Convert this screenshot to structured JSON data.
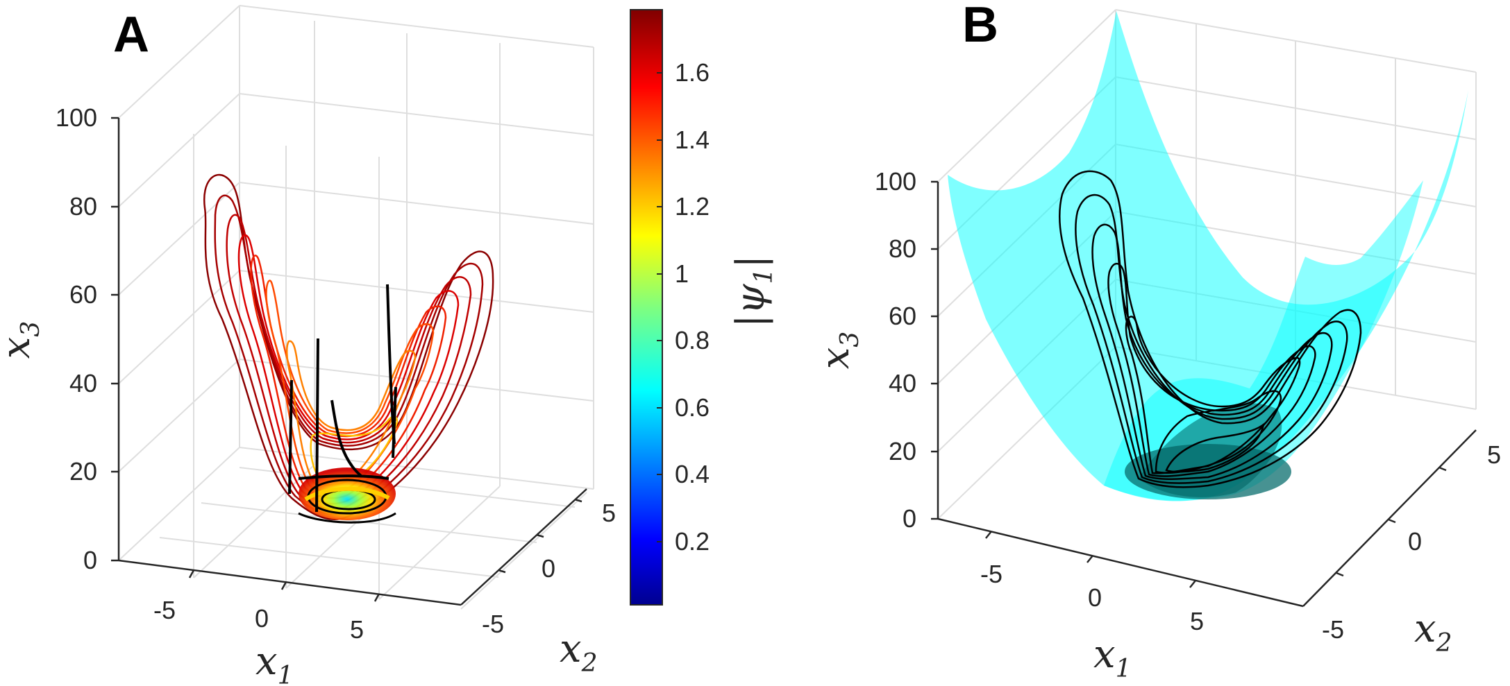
{
  "chart_data": [
    {
      "panel": "A",
      "type": "surface-3d-contour",
      "zlabel": "x",
      "zlabel_sub": "3",
      "xlabel": "x",
      "xlabel_sub": "1",
      "ylabel": "x",
      "ylabel_sub": "2",
      "z_ticks": [
        "0",
        "20",
        "40",
        "60",
        "80",
        "100"
      ],
      "x1_ticks": [
        "-5",
        "0",
        "5"
      ],
      "x2_ticks": [
        "-5",
        "0",
        "5"
      ],
      "zlim": [
        0,
        100
      ],
      "x1lim": [
        -8,
        8
      ],
      "x2lim": [
        -6,
        6
      ],
      "colorbar": {
        "label": "|ψ",
        "label_sub": "1",
        "label_close": "|",
        "ticks": [
          "0.2",
          "0.4",
          "0.6",
          "0.8",
          "1",
          "1.2",
          "1.4",
          "1.6"
        ],
        "range": [
          0.02,
          1.78
        ],
        "colormap": "jet"
      },
      "line_color": "#8b0000",
      "trajectory_color": "#000000"
    },
    {
      "panel": "B",
      "type": "surface-3d-contour",
      "zlabel": "x",
      "zlabel_sub": "3",
      "xlabel": "x",
      "xlabel_sub": "1",
      "ylabel": "x",
      "ylabel_sub": "2",
      "z_ticks": [
        "0",
        "20",
        "40",
        "60",
        "80",
        "100"
      ],
      "x1_ticks": [
        "-5",
        "0",
        "5"
      ],
      "x2_ticks": [
        "-5",
        "0",
        "5"
      ],
      "zlim": [
        0,
        100
      ],
      "surface_color": "#00ffff",
      "line_color": "#000000"
    }
  ],
  "colors": {
    "grid": "#dedede",
    "axis": "#262626",
    "cyan": "#00ffff",
    "darkteal": "#0a6e6e"
  }
}
